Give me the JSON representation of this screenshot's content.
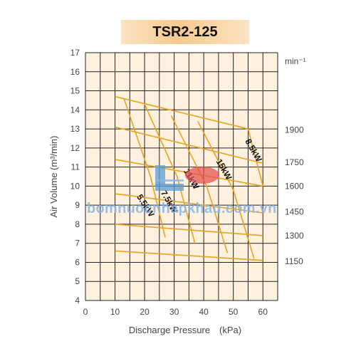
{
  "title": "TSR2-125",
  "watermark": "bomnuocnhapkhau.com.vn",
  "chart_data": {
    "type": "line",
    "title": "TSR2-125",
    "xlabel": "Discharge Pressure　(kPa)",
    "ylabel": "Air Volume (m³/min)",
    "y2label": "min⁻¹",
    "xlim": [
      0,
      65
    ],
    "ylim": [
      4,
      17
    ],
    "xticks": [
      0,
      10,
      20,
      30,
      40,
      50,
      60
    ],
    "yticks": [
      4,
      5,
      6,
      7,
      8,
      9,
      10,
      11,
      12,
      13,
      14,
      15,
      16,
      17
    ],
    "grid": true,
    "speed_series": [
      {
        "name": "1900",
        "x": [
          10,
          55
        ],
        "y": [
          14.7,
          13.0
        ],
        "label_y": 12.95
      },
      {
        "name": "1750",
        "x": [
          10,
          60
        ],
        "y": [
          13.1,
          11.2
        ],
        "label_y": 11.25
      },
      {
        "name": "1600",
        "x": [
          10,
          60
        ],
        "y": [
          11.4,
          10.0
        ],
        "label_y": 10.0
      },
      {
        "name": "1450",
        "x": [
          10,
          60
        ],
        "y": [
          9.6,
          8.6
        ],
        "label_y": 8.65
      },
      {
        "name": "1300",
        "x": [
          10,
          60
        ],
        "y": [
          8.0,
          7.4
        ],
        "label_y": 7.4
      },
      {
        "name": "1150",
        "x": [
          10,
          60
        ],
        "y": [
          6.6,
          6.1
        ],
        "label_y": 6.05
      }
    ],
    "power_series": [
      {
        "name": "5.5kW",
        "x": [
          13,
          22,
          27
        ],
        "y": [
          14.6,
          10.5,
          7.3
        ],
        "label": "5.5kW",
        "label_x": 19.5,
        "label_y": 8.9,
        "label_angle": 58
      },
      {
        "name": "7.5kW",
        "x": [
          20,
          31,
          37
        ],
        "y": [
          14.3,
          10.5,
          7.0
        ],
        "label": "7.5kW",
        "label_x": 27.5,
        "label_y": 9.1,
        "label_angle": 60
      },
      {
        "name": "11kW",
        "x": [
          29,
          41,
          48
        ],
        "y": [
          13.7,
          10.0,
          6.5
        ],
        "label": "11kW",
        "label_x": 35,
        "label_y": 10.3,
        "label_angle": 60
      },
      {
        "name": "15kW",
        "x": [
          38,
          50,
          57
        ],
        "y": [
          13.4,
          9.8,
          6.2
        ],
        "label": "15kW",
        "label_x": 46,
        "label_y": 10.8,
        "label_angle": 60
      },
      {
        "name": "8.5kW",
        "x": [
          55,
          60
        ],
        "y": [
          13.0,
          10.0
        ],
        "label": "8.5kW",
        "label_x": 56,
        "label_y": 11.8,
        "label_angle": 60
      }
    ],
    "colors": {
      "plot_bg": "#fff1dd",
      "grid": "#222222",
      "line": "#e8a21e",
      "axis_text": "#444444"
    }
  }
}
